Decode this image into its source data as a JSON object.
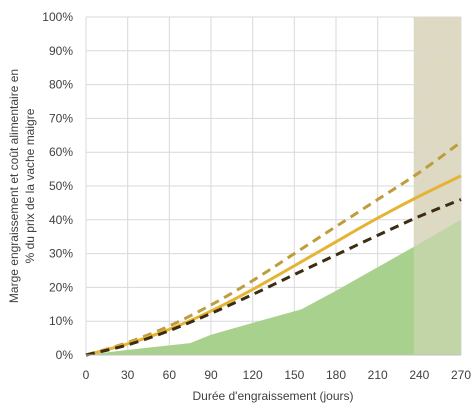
{
  "chart_data": {
    "type": "area",
    "xlabel": "Durée d'engraissement (jours)",
    "ylabel_line1": "Marge engraissement et coût alimentaire en",
    "ylabel_line2": "% du prix de la vache maigre",
    "xlim": [
      0,
      270
    ],
    "ylim": [
      0,
      100
    ],
    "x_ticks": [
      0,
      30,
      60,
      90,
      120,
      150,
      180,
      210,
      240,
      270
    ],
    "y_ticks": [
      0,
      10,
      20,
      30,
      40,
      50,
      60,
      70,
      80,
      90,
      100
    ],
    "y_tick_labels": [
      "0%",
      "10%",
      "20%",
      "30%",
      "40%",
      "50%",
      "60%",
      "70%",
      "80%",
      "90%",
      "100%"
    ],
    "grid": true,
    "highlight_band": {
      "x_start": 236,
      "x_end": 270,
      "color": "#ddd9c4"
    },
    "area": {
      "color": "#a9d18e",
      "x": [
        0,
        30,
        75,
        90,
        120,
        155,
        180,
        236,
        270
      ],
      "y": [
        0,
        1.5,
        3.5,
        6,
        9.5,
        13.5,
        19,
        32,
        40
      ]
    },
    "series": [
      {
        "style": "dashed",
        "color": "#bf9c3c",
        "x": [
          0,
          30,
          60,
          90,
          120,
          150,
          180,
          210,
          240,
          270
        ],
        "y": [
          0,
          3.7,
          8.6,
          14.8,
          22,
          30,
          38,
          46,
          54,
          63
        ]
      },
      {
        "style": "solid",
        "color": "#e6b435",
        "x": [
          0,
          30,
          60,
          90,
          120,
          150,
          180,
          210,
          240,
          270
        ],
        "y": [
          0,
          3.3,
          7.6,
          13,
          19.4,
          26.4,
          33.5,
          40.5,
          47,
          53
        ]
      },
      {
        "style": "dashed",
        "color": "#3b2c12",
        "x": [
          0,
          30,
          60,
          90,
          120,
          150,
          180,
          210,
          240,
          270
        ],
        "y": [
          0,
          3,
          7.2,
          12.3,
          17.9,
          23.8,
          29.6,
          35.4,
          41,
          46
        ]
      }
    ]
  }
}
